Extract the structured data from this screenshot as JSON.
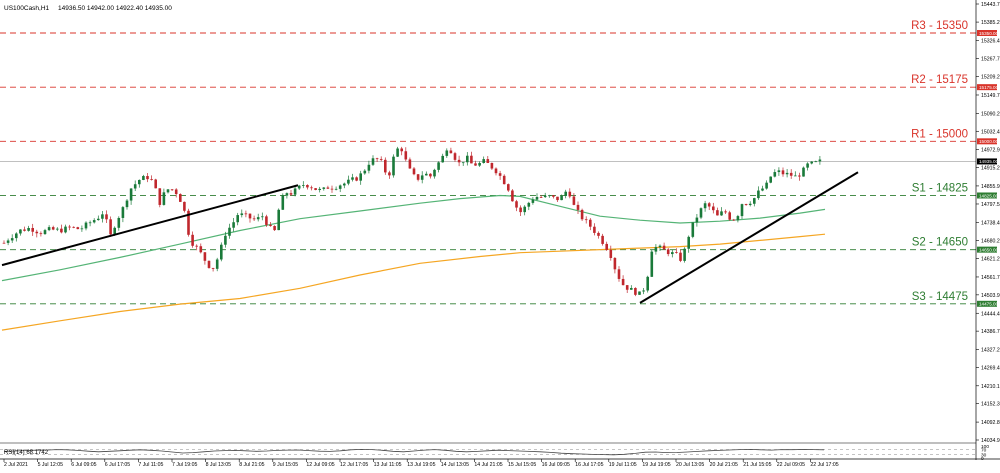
{
  "header": {
    "symbol_label": "US100Cash,H1",
    "ohlc_label": "14936.50 14942.00 14922.40 14935.00"
  },
  "rsi_panel": {
    "label": "RSI(14) 68.1742",
    "levels": [
      "100",
      "70",
      "30",
      "0"
    ]
  },
  "colors": {
    "background": "#ffffff",
    "up_candle": "#1a7a3a",
    "down_candle": "#c0272d",
    "ma_fast": "#55b476",
    "ma_slow": "#f5a623",
    "resistance": "#d9342b",
    "support": "#2e7d32",
    "trendline": "#000000",
    "grid": "#e6e6e6"
  },
  "chart_data": {
    "type": "candlestick",
    "symbol": "US100Cash",
    "timeframe": "H1",
    "ylim": [
      14034.95,
      15443.7
    ],
    "y_ticks": [
      "15443.70",
      "15385.25",
      "15326.45",
      "15267.70",
      "15209.20",
      "15149.70",
      "15090.20",
      "15032.45",
      "14972.90",
      "14915.20",
      "14855.90",
      "14797.55",
      "14738.40",
      "14680.20",
      "14621.20",
      "14561.75",
      "14503.95",
      "14444.45",
      "14386.70",
      "14327.20",
      "14269.45",
      "14210.10",
      "14152.35",
      "14092.80",
      "14034.95"
    ],
    "x_ticks": [
      "2 Jul 2021",
      "5 Jul 12:05",
      "6 Jul 09:05",
      "6 Jul 17:05",
      "7 Jul 11:05",
      "7 Jul 19:05",
      "8 Jul 13:05",
      "8 Jul 21:05",
      "9 Jul 15:05",
      "12 Jul 09:05",
      "12 Jul 17:05",
      "13 Jul 11:05",
      "13 Jul 19:05",
      "14 Jul 13:05",
      "14 Jul 21:05",
      "15 Jul 15:05",
      "16 Jul 09:05",
      "16 Jul 17:05",
      "19 Jul 11:05",
      "19 Jul 19:05",
      "20 Jul 13:05",
      "20 Jul 21:05",
      "21 Jul 15:05",
      "22 Jul 09:05",
      "22 Jul 17:05"
    ],
    "current_price": 14935.0,
    "levels": [
      {
        "name": "R3 - 15350",
        "value": 15350,
        "kind": "resistance"
      },
      {
        "name": "R2 - 15175",
        "value": 15175,
        "kind": "resistance"
      },
      {
        "name": "R1 - 15000",
        "value": 15000,
        "kind": "resistance"
      },
      {
        "name": "S1 - 14825",
        "value": 14825,
        "kind": "support"
      },
      {
        "name": "S2 - 14650",
        "value": 14650,
        "kind": "support"
      },
      {
        "name": "S3 - 14475",
        "value": 14475,
        "kind": "support"
      }
    ],
    "price_path": [
      [
        0,
        14660
      ],
      [
        10,
        14690
      ],
      [
        20,
        14712
      ],
      [
        30,
        14720
      ],
      [
        40,
        14705
      ],
      [
        50,
        14715
      ],
      [
        60,
        14712
      ],
      [
        70,
        14722
      ],
      [
        80,
        14716
      ],
      [
        90,
        14738
      ],
      [
        100,
        14758
      ],
      [
        104,
        14775
      ],
      [
        110,
        14690
      ],
      [
        116,
        14740
      ],
      [
        124,
        14790
      ],
      [
        130,
        14845
      ],
      [
        140,
        14878
      ],
      [
        150,
        14886
      ],
      [
        156,
        14840
      ],
      [
        160,
        14800
      ],
      [
        166,
        14845
      ],
      [
        172,
        14845
      ],
      [
        178,
        14830
      ],
      [
        184,
        14780
      ],
      [
        190,
        14680
      ],
      [
        196,
        14660
      ],
      [
        202,
        14632
      ],
      [
        208,
        14600
      ],
      [
        214,
        14590
      ],
      [
        220,
        14645
      ],
      [
        226,
        14708
      ],
      [
        232,
        14730
      ],
      [
        238,
        14765
      ],
      [
        244,
        14760
      ],
      [
        250,
        14752
      ],
      [
        256,
        14745
      ],
      [
        262,
        14760
      ],
      [
        268,
        14730
      ],
      [
        274,
        14700
      ],
      [
        280,
        14800
      ],
      [
        286,
        14835
      ],
      [
        292,
        14832
      ],
      [
        298,
        14848
      ],
      [
        304,
        14862
      ],
      [
        310,
        14856
      ],
      [
        316,
        14845
      ],
      [
        322,
        14840
      ],
      [
        328,
        14852
      ],
      [
        334,
        14852
      ],
      [
        340,
        14860
      ],
      [
        346,
        14865
      ],
      [
        352,
        14875
      ],
      [
        358,
        14882
      ],
      [
        364,
        14905
      ],
      [
        370,
        14936
      ],
      [
        376,
        14944
      ],
      [
        382,
        14930
      ],
      [
        388,
        14880
      ],
      [
        394,
        14952
      ],
      [
        400,
        14990
      ],
      [
        406,
        14935
      ],
      [
        412,
        14890
      ],
      [
        418,
        14880
      ],
      [
        424,
        14898
      ],
      [
        430,
        14885
      ],
      [
        436,
        14920
      ],
      [
        442,
        14945
      ],
      [
        448,
        14988
      ],
      [
        454,
        14952
      ],
      [
        460,
        14925
      ],
      [
        466,
        14950
      ],
      [
        472,
        14925
      ],
      [
        478,
        14925
      ],
      [
        484,
        14935
      ],
      [
        490,
        14922
      ],
      [
        496,
        14905
      ],
      [
        502,
        14880
      ],
      [
        508,
        14850
      ],
      [
        514,
        14800
      ],
      [
        520,
        14770
      ],
      [
        526,
        14790
      ],
      [
        532,
        14815
      ],
      [
        538,
        14822
      ],
      [
        544,
        14818
      ],
      [
        550,
        14822
      ],
      [
        556,
        14812
      ],
      [
        562,
        14820
      ],
      [
        568,
        14848
      ],
      [
        574,
        14790
      ],
      [
        580,
        14760
      ],
      [
        586,
        14740
      ],
      [
        592,
        14720
      ],
      [
        598,
        14695
      ],
      [
        604,
        14670
      ],
      [
        610,
        14640
      ],
      [
        616,
        14580
      ],
      [
        622,
        14540
      ],
      [
        628,
        14525
      ],
      [
        634,
        14515
      ],
      [
        640,
        14505
      ],
      [
        646,
        14535
      ],
      [
        652,
        14655
      ],
      [
        658,
        14658
      ],
      [
        664,
        14648
      ],
      [
        670,
        14640
      ],
      [
        676,
        14633
      ],
      [
        682,
        14615
      ],
      [
        688,
        14690
      ],
      [
        694,
        14740
      ],
      [
        700,
        14775
      ],
      [
        706,
        14800
      ],
      [
        712,
        14778
      ],
      [
        718,
        14755
      ],
      [
        724,
        14778
      ],
      [
        730,
        14752
      ],
      [
        736,
        14748
      ],
      [
        742,
        14800
      ],
      [
        748,
        14800
      ],
      [
        754,
        14815
      ],
      [
        760,
        14842
      ],
      [
        766,
        14855
      ],
      [
        772,
        14895
      ],
      [
        778,
        14902
      ],
      [
        784,
        14895
      ],
      [
        790,
        14892
      ],
      [
        796,
        14885
      ],
      [
        802,
        14900
      ],
      [
        808,
        14925
      ],
      [
        814,
        14928
      ],
      [
        820,
        14935
      ]
    ],
    "ma_fast": [
      [
        2,
        14550
      ],
      [
        60,
        14585
      ],
      [
        120,
        14625
      ],
      [
        180,
        14668
      ],
      [
        240,
        14712
      ],
      [
        300,
        14750
      ],
      [
        360,
        14775
      ],
      [
        420,
        14800
      ],
      [
        460,
        14815
      ],
      [
        500,
        14825
      ],
      [
        520,
        14822
      ],
      [
        560,
        14790
      ],
      [
        600,
        14758
      ],
      [
        640,
        14745
      ],
      [
        680,
        14736
      ],
      [
        720,
        14742
      ],
      [
        760,
        14752
      ],
      [
        800,
        14768
      ],
      [
        825,
        14780
      ]
    ],
    "ma_slow": [
      [
        2,
        14390
      ],
      [
        60,
        14420
      ],
      [
        120,
        14450
      ],
      [
        180,
        14474
      ],
      [
        240,
        14492
      ],
      [
        300,
        14525
      ],
      [
        360,
        14568
      ],
      [
        420,
        14606
      ],
      [
        480,
        14628
      ],
      [
        520,
        14640
      ],
      [
        560,
        14645
      ],
      [
        600,
        14650
      ],
      [
        640,
        14655
      ],
      [
        680,
        14660
      ],
      [
        720,
        14668
      ],
      [
        760,
        14680
      ],
      [
        800,
        14692
      ],
      [
        825,
        14700
      ]
    ],
    "trendlines": [
      {
        "from": [
          2,
          14600
        ],
        "to": [
          298,
          14858
        ]
      },
      {
        "from": [
          640,
          14478
        ],
        "to": [
          858,
          14900
        ]
      }
    ],
    "rsi": {
      "ylim": [
        0,
        100
      ],
      "levels": [
        30,
        70
      ],
      "value": 68.1742,
      "values": [
        55,
        58,
        62,
        65,
        66,
        70,
        68,
        63,
        57,
        52,
        56,
        60,
        65,
        68,
        64,
        58,
        50,
        42,
        45,
        52,
        58,
        62,
        63,
        60,
        56,
        58,
        63,
        66,
        67,
        62,
        57,
        55,
        60,
        68,
        72,
        70,
        64,
        56,
        52,
        58,
        66,
        70,
        64,
        56,
        52,
        55,
        60,
        65,
        62,
        58,
        55,
        52,
        47,
        40,
        36,
        33,
        30,
        28,
        27,
        31,
        38,
        48,
        50,
        45,
        46,
        50,
        55,
        60,
        63,
        67,
        70,
        72,
        68,
        66,
        70,
        69,
        71,
        70,
        68
      ]
    }
  }
}
